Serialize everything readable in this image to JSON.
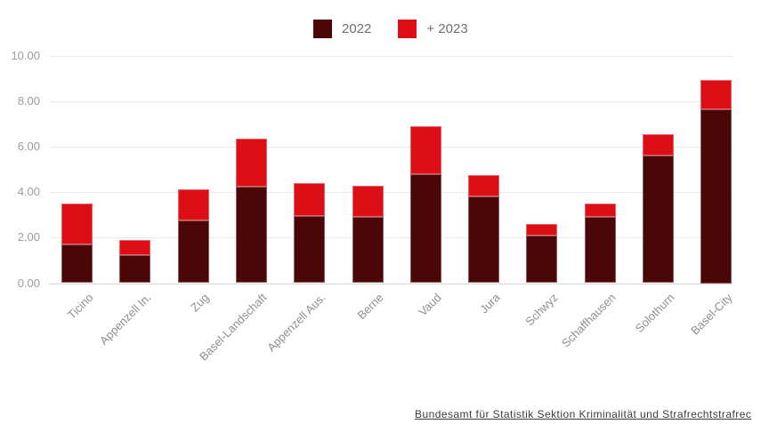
{
  "legend": {
    "items": [
      {
        "label": "2022",
        "color": "#4B0707"
      },
      {
        "label": "+ 2023",
        "color": "#DD0E16"
      }
    ]
  },
  "source": {
    "text": "Bundesamt für Statistik Sektion Kriminalität und Strafrechtstrafrec"
  },
  "chart_data": {
    "type": "bar",
    "stacked": true,
    "title": "",
    "xlabel": "",
    "ylabel": "",
    "categories": [
      "Ticino",
      "Appenzell In.",
      "Zug",
      "Basel-Landschaft",
      "Appenzell Aus.",
      "Berne",
      "Vaud",
      "Jura",
      "Schwyz",
      "Schaffhausen",
      "Solothurn",
      "Basel-City"
    ],
    "series": [
      {
        "name": "2022",
        "color": "#4B0707",
        "values": [
          1.7,
          1.25,
          2.75,
          4.25,
          2.95,
          2.9,
          4.8,
          3.8,
          2.1,
          2.9,
          5.6,
          7.65
        ]
      },
      {
        "name": "+ 2023",
        "color": "#DD0E16",
        "values": [
          1.8,
          0.65,
          1.4,
          2.1,
          1.45,
          1.4,
          2.1,
          0.95,
          0.5,
          0.6,
          0.95,
          1.3
        ]
      }
    ],
    "ylim": [
      0,
      10
    ],
    "y_ticks": [
      0,
      2,
      4,
      6,
      8,
      10
    ],
    "y_tick_labels": [
      "0.00",
      "2.00",
      "4.00",
      "6.00",
      "8.00",
      "10.00"
    ],
    "grid": true,
    "legend_position": "top-center"
  }
}
